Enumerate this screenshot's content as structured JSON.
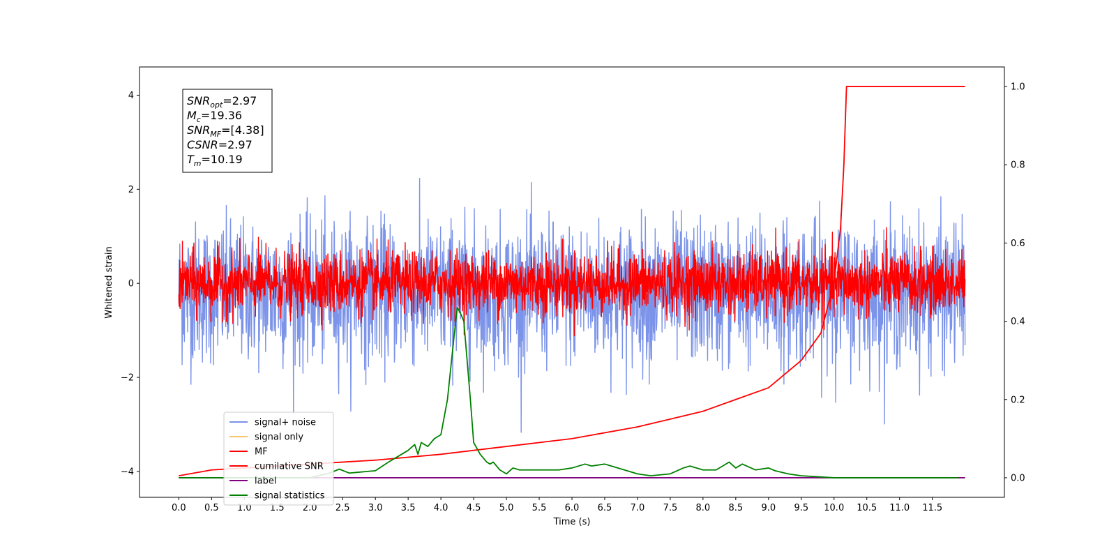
{
  "chart_data": {
    "type": "line",
    "xlabel": "Time (s)",
    "ylabel": "Whitened strain",
    "xlim": [
      -0.6,
      12.6
    ],
    "ylim": [
      -4.55,
      4.6
    ],
    "y2lim": [
      -0.05,
      1.05
    ],
    "xticks": [
      "0.0",
      "0.5",
      "1.0",
      "1.5",
      "2.0",
      "2.5",
      "3.0",
      "3.5",
      "4.0",
      "4.5",
      "5.0",
      "5.5",
      "6.0",
      "6.5",
      "7.0",
      "7.5",
      "8.0",
      "8.5",
      "9.0",
      "9.5",
      "10.0",
      "10.5",
      "11.0",
      "11.5"
    ],
    "yticks": [
      "4",
      "2",
      "0",
      "−2",
      "−4"
    ],
    "y2ticks": [
      "1.0",
      "0.8",
      "0.6",
      "0.4",
      "0.2",
      "0.0"
    ],
    "grid": false,
    "legend_placement": "lower-left",
    "annotation": {
      "lines": [
        {
          "sym": "SNR",
          "sub": "opt",
          "value": "=2.97"
        },
        {
          "sym": "M",
          "sub": "c",
          "value": "=19.36"
        },
        {
          "sym": "SNR",
          "sub": "MF",
          "value": "=[4.38]"
        },
        {
          "sym": "CSNR",
          "sub": "",
          "value": "=2.97"
        },
        {
          "sym": "T",
          "sub": "m",
          "value": "=10.19"
        }
      ]
    },
    "series": [
      {
        "name": "signal+ noise",
        "color": "#7b93e8",
        "axis": "left",
        "style": "noise",
        "center": -0.2,
        "amplitude": 1.35,
        "x_range": [
          0.0,
          12.0
        ]
      },
      {
        "name": "signal only",
        "color": "#f5c66b",
        "axis": "left",
        "values": []
      },
      {
        "name": "MF",
        "color": "#ff0000",
        "axis": "left",
        "style": "noise",
        "center": 0.0,
        "amplitude": 0.6,
        "x_range": [
          0.0,
          12.0
        ]
      },
      {
        "name": "cumilative SNR",
        "color": "#ff0000",
        "axis": "right",
        "x": [
          0.0,
          0.5,
          1.0,
          2.0,
          3.0,
          4.0,
          5.0,
          6.0,
          7.0,
          7.5,
          8.0,
          8.5,
          9.0,
          9.5,
          9.8,
          10.0,
          10.1,
          10.15,
          10.19,
          10.5,
          11.0,
          12.0
        ],
        "y": [
          0.005,
          0.02,
          0.025,
          0.035,
          0.045,
          0.06,
          0.08,
          0.1,
          0.13,
          0.15,
          0.17,
          0.2,
          0.23,
          0.3,
          0.37,
          0.5,
          0.64,
          0.8,
          1.0,
          1.0,
          1.0,
          1.0
        ]
      },
      {
        "name": "label",
        "color": "#800080",
        "axis": "right",
        "x": [
          0.0,
          12.0
        ],
        "y": [
          0.0,
          0.0
        ]
      },
      {
        "name": "signal statistics",
        "color": "#008000",
        "axis": "right",
        "x": [
          0.0,
          1.0,
          2.0,
          2.3,
          2.45,
          2.6,
          3.0,
          3.2,
          3.4,
          3.5,
          3.6,
          3.65,
          3.7,
          3.8,
          3.9,
          4.0,
          4.1,
          4.2,
          4.25,
          4.3,
          4.35,
          4.4,
          4.45,
          4.5,
          4.6,
          4.7,
          4.75,
          4.8,
          4.9,
          5.0,
          5.1,
          5.2,
          5.5,
          5.8,
          6.0,
          6.2,
          6.3,
          6.5,
          6.6,
          6.8,
          7.0,
          7.2,
          7.5,
          7.7,
          7.8,
          8.0,
          8.2,
          8.4,
          8.5,
          8.6,
          8.8,
          9.0,
          9.1,
          9.3,
          9.5,
          9.8,
          10.0,
          10.5,
          11.0,
          11.9
        ],
        "y": [
          0.0,
          0.0,
          0.0,
          0.012,
          0.022,
          0.012,
          0.018,
          0.04,
          0.06,
          0.07,
          0.085,
          0.06,
          0.09,
          0.08,
          0.1,
          0.11,
          0.2,
          0.36,
          0.435,
          0.42,
          0.4,
          0.3,
          0.2,
          0.09,
          0.06,
          0.04,
          0.035,
          0.04,
          0.02,
          0.01,
          0.025,
          0.02,
          0.02,
          0.02,
          0.025,
          0.035,
          0.03,
          0.035,
          0.03,
          0.02,
          0.01,
          0.005,
          0.01,
          0.025,
          0.03,
          0.02,
          0.02,
          0.04,
          0.025,
          0.035,
          0.02,
          0.025,
          0.018,
          0.01,
          0.005,
          0.002,
          0.0,
          0.0,
          0.0,
          0.0
        ]
      }
    ]
  }
}
